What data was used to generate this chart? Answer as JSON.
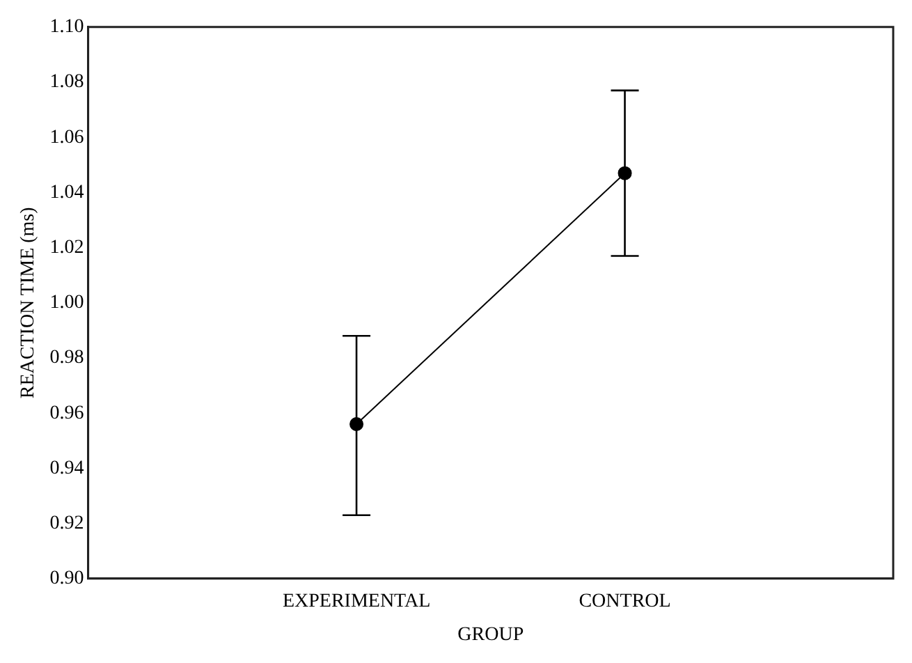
{
  "chart_data": {
    "type": "line",
    "xlabel": "GROUP",
    "ylabel": "REACTION TIME (ms)",
    "categories": [
      "EXPERIMENTAL",
      "CONTROL"
    ],
    "series": [
      {
        "color": "#000000",
        "values": [
          0.956,
          1.047
        ],
        "errors": [
          [
            0.923,
            0.988
          ],
          [
            1.017,
            1.077
          ]
        ]
      }
    ],
    "ylim": [
      0.9,
      1.1
    ],
    "yticks": [
      {
        "value": 0.9,
        "label": "0.90"
      },
      {
        "value": 0.92,
        "label": "0.92"
      },
      {
        "value": 0.94,
        "label": "0.94"
      },
      {
        "value": 0.96,
        "label": "0.96"
      },
      {
        "value": 0.98,
        "label": "0.98"
      },
      {
        "value": 1.0,
        "label": "1.00"
      },
      {
        "value": 1.02,
        "label": "1.02"
      },
      {
        "value": 1.04,
        "label": "1.04"
      },
      {
        "value": 1.06,
        "label": "1.06"
      },
      {
        "value": 1.08,
        "label": "1.08"
      },
      {
        "value": 1.1,
        "label": "1.10"
      }
    ],
    "grid": false,
    "legend": false,
    "marker": "circle",
    "line_style": "solid"
  }
}
